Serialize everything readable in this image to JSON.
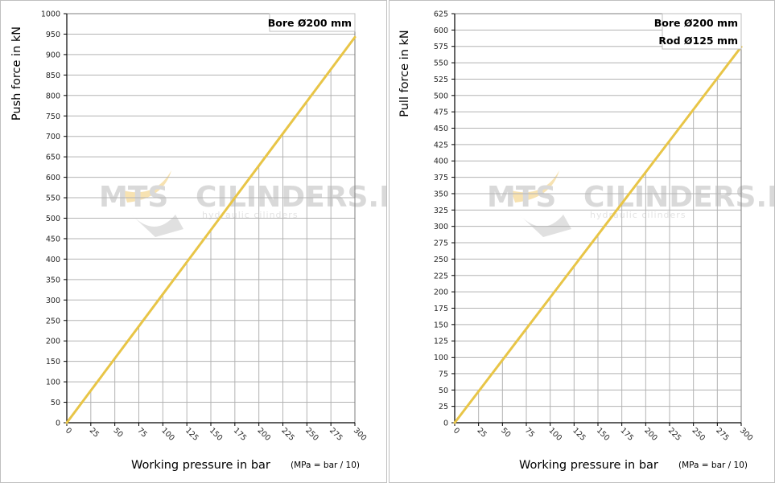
{
  "watermark": {
    "brand": "MTS",
    "site": "CILINDERS.NL",
    "tagline": "hydraulic cilinders"
  },
  "note": "(MPa = bar / 10)",
  "colors": {
    "line": "#e8c547",
    "grid": "#b3b3b3",
    "watermark_accent": "#f3d690"
  },
  "chart_data": [
    {
      "type": "line",
      "title": "",
      "xlabel": "Working pressure in bar",
      "ylabel": "Push force in kN",
      "labels_box": [
        "Bore Ø200 mm"
      ],
      "xlim": [
        0,
        300
      ],
      "ylim": [
        0,
        1000
      ],
      "x_ticks": [
        0,
        25,
        50,
        75,
        100,
        125,
        150,
        175,
        200,
        225,
        250,
        275,
        300
      ],
      "y_ticks": [
        0,
        50,
        100,
        150,
        200,
        250,
        300,
        350,
        400,
        450,
        500,
        550,
        600,
        650,
        700,
        750,
        800,
        850,
        900,
        950,
        1000
      ],
      "grid": true,
      "series": [
        {
          "x": [
            0,
            25,
            50,
            75,
            100,
            125,
            150,
            175,
            200,
            225,
            250,
            275,
            300
          ],
          "y": [
            0,
            78.5,
            157.1,
            235.6,
            314.2,
            392.7,
            471.2,
            549.8,
            628.3,
            706.9,
            785.4,
            863.9,
            942.5
          ]
        }
      ]
    },
    {
      "type": "line",
      "title": "",
      "xlabel": "Working pressure in bar",
      "ylabel": "Pull force in kN",
      "labels_box": [
        "Bore Ø200 mm",
        "Rod Ø125 mm"
      ],
      "xlim": [
        0,
        300
      ],
      "ylim": [
        0,
        625
      ],
      "x_ticks": [
        0,
        25,
        50,
        75,
        100,
        125,
        150,
        175,
        200,
        225,
        250,
        275,
        300
      ],
      "y_ticks": [
        0,
        25,
        50,
        75,
        100,
        125,
        150,
        175,
        200,
        225,
        250,
        275,
        300,
        325,
        350,
        375,
        400,
        425,
        450,
        475,
        500,
        525,
        550,
        575,
        600,
        625
      ],
      "grid": true,
      "series": [
        {
          "x": [
            0,
            25,
            50,
            75,
            100,
            125,
            150,
            175,
            200,
            225,
            250,
            275,
            300
          ],
          "y": [
            0,
            47.9,
            95.7,
            143.6,
            191.4,
            239.3,
            287.1,
            335.0,
            382.8,
            430.7,
            478.6,
            526.4,
            574.3
          ]
        }
      ]
    }
  ]
}
